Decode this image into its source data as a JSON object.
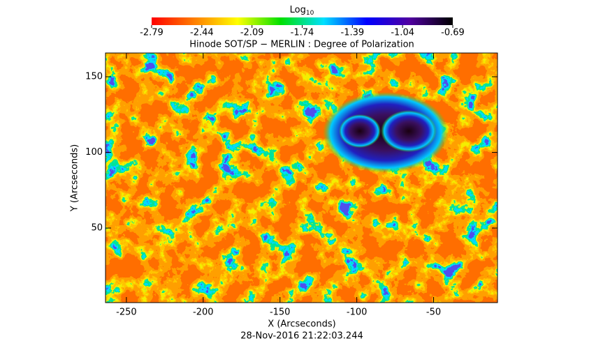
{
  "chart_data": {
    "type": "heatmap",
    "title": "Hinode SOT/SP − MERLIN : Degree of Polarization",
    "subtitle": "28-Nov-2016 21:22:03.244",
    "x_label": "X (Arcseconds)",
    "y_label": "Y (Arcseconds)",
    "xlim": [
      -263.6,
      -8.4
    ],
    "xticks": [
      -250,
      -200,
      -150,
      -100,
      -50
    ],
    "ylim": [
      0.7,
      165.7
    ],
    "yticks": [
      50,
      100,
      150
    ],
    "colorbar": {
      "label": "Log",
      "label_sub": "10",
      "lim": [
        -2.79,
        -0.69
      ],
      "ticks": [
        -2.79,
        -2.44,
        -2.09,
        -1.74,
        -1.39,
        -1.04,
        -0.69
      ],
      "colors": [
        "#ff0000",
        "#ff7f00",
        "#ffff00",
        "#00e000",
        "#00e0ff",
        "#0000ff",
        "#5000a0",
        "#000000"
      ]
    }
  }
}
